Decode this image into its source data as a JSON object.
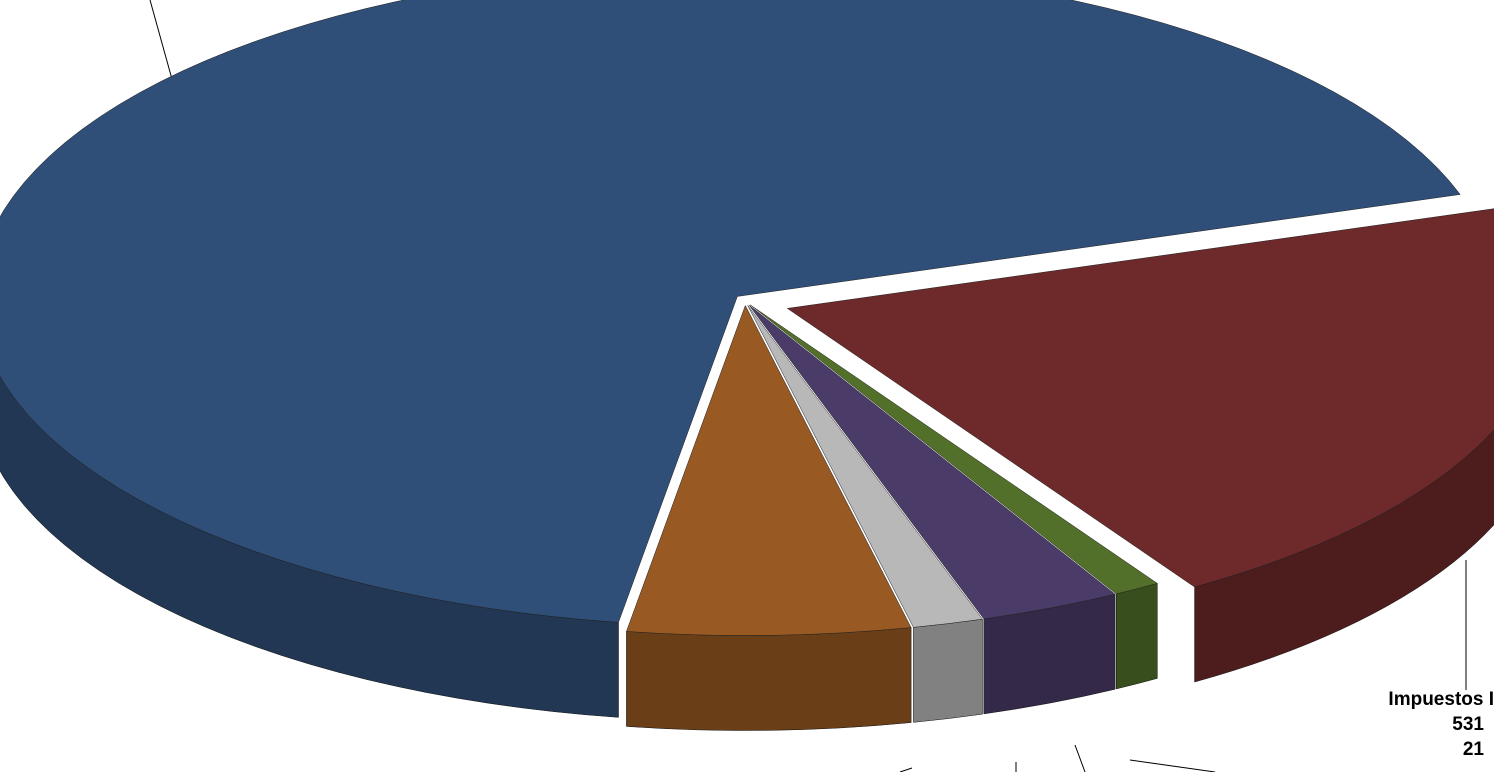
{
  "chart_data": {
    "type": "pie",
    "categories": [
      null,
      "Impuestos I",
      null,
      null,
      null,
      null
    ],
    "values": [
      67.5,
      21,
      1,
      3,
      1.5,
      6
    ],
    "value_labels": [
      null,
      "21",
      null,
      null,
      null,
      null
    ],
    "amounts": [
      null,
      531,
      null,
      null,
      null,
      null
    ],
    "colors": [
      "#2f4f78",
      "#6e2a2a",
      "#52702a",
      "#4b3b68",
      "#b8b8b8",
      "#985a22"
    ]
  }
}
